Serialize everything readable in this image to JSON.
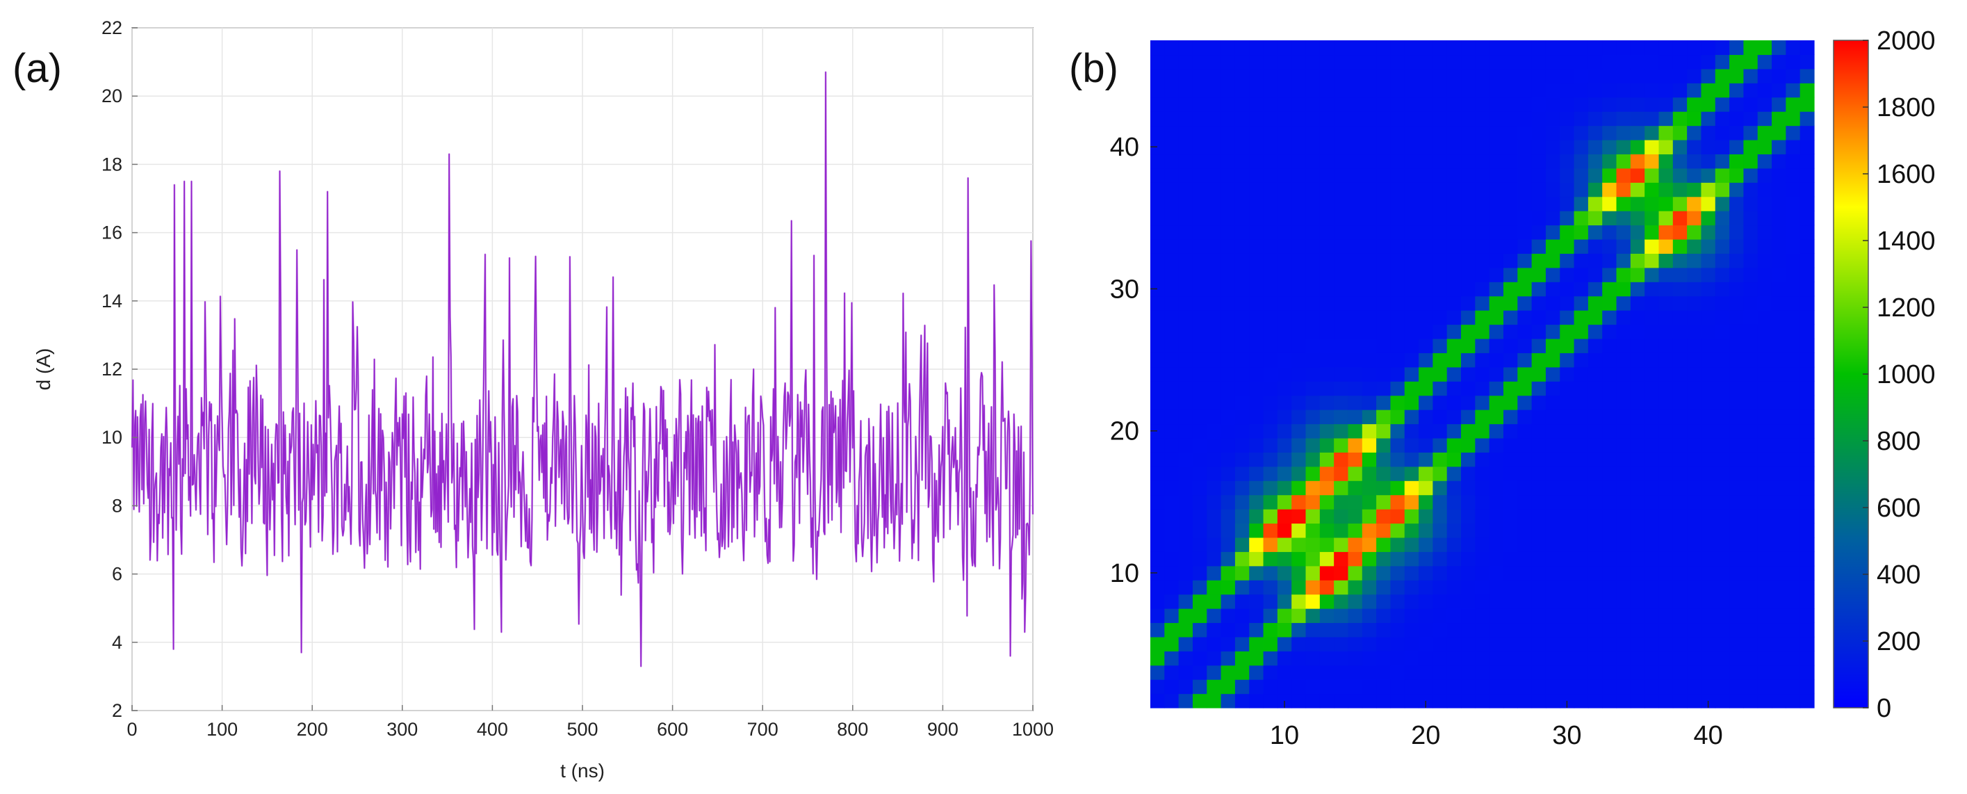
{
  "figure": {
    "panel_a_label": "(a)",
    "panel_b_label": "(b)"
  },
  "chart_data": [
    {
      "type": "line",
      "panel": "a",
      "title": "",
      "xlabel": "t (ns)",
      "ylabel": "d (A)",
      "xlim": [
        0,
        1000
      ],
      "ylim": [
        2,
        22
      ],
      "xticks": [
        0,
        100,
        200,
        300,
        400,
        500,
        600,
        700,
        800,
        900,
        1000
      ],
      "yticks": [
        2,
        4,
        6,
        8,
        10,
        12,
        14,
        16,
        18,
        20,
        22
      ],
      "grid": true,
      "legend": "none",
      "colors": {
        "dark": "#8a12c8",
        "light": "#c98fe6"
      },
      "series": [
        {
          "mean": 8.9,
          "sampling_interval": 1,
          "peaks": [
            {
              "x": 47,
              "y": 17.4
            },
            {
              "x": 58,
              "y": 17.5
            },
            {
              "x": 66,
              "y": 17.5
            },
            {
              "x": 164,
              "y": 17.8
            },
            {
              "x": 217,
              "y": 17.2
            },
            {
              "x": 352,
              "y": 18.3
            },
            {
              "x": 770,
              "y": 20.7
            },
            {
              "x": 928,
              "y": 17.6
            }
          ],
          "troughs": [
            {
              "x": 46,
              "y": 3.8
            },
            {
              "x": 188,
              "y": 3.7
            },
            {
              "x": 565,
              "y": 3.3
            },
            {
              "x": 975,
              "y": 3.6
            }
          ]
        }
      ]
    },
    {
      "type": "heatmap",
      "panel": "b",
      "title": "",
      "xlabel": "",
      "ylabel": "",
      "xlim": [
        1,
        47
      ],
      "ylim": [
        1,
        47
      ],
      "xticks": [
        10,
        20,
        30,
        40
      ],
      "yticks": [
        10,
        20,
        30,
        40
      ],
      "grid": false,
      "colorbar": {
        "min": 0,
        "max": 2000,
        "ticks": [
          0,
          200,
          400,
          600,
          800,
          1000,
          1200,
          1400,
          1600,
          1800,
          2000
        ],
        "colormap": [
          "#0000ff",
          "#0060a0",
          "#00c000",
          "#ffff00",
          "#ff0000"
        ]
      },
      "background_value": 80,
      "bands": [
        {
          "offset": -3.5,
          "peak_value": 1050,
          "width": 0.9
        },
        {
          "offset": 3.5,
          "peak_value": 1050,
          "width": 0.9
        }
      ],
      "hotspots": [
        {
          "x": 10,
          "y": 13.5,
          "value": 1850
        },
        {
          "x": 14,
          "y": 18,
          "value": 1750
        },
        {
          "x": 13.5,
          "y": 10,
          "value": 1850
        },
        {
          "x": 18,
          "y": 14,
          "value": 1750
        },
        {
          "x": 34.5,
          "y": 38,
          "value": 1750
        },
        {
          "x": 38,
          "y": 34.5,
          "value": 1750
        }
      ]
    }
  ]
}
